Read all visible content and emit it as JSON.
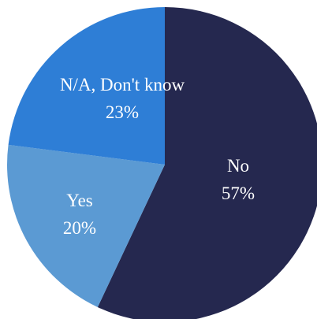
{
  "chart_data": {
    "type": "pie",
    "title": "",
    "start_angle_deg": 0,
    "direction": "clockwise",
    "slices": [
      {
        "label": "No",
        "value": 57,
        "value_label": "57%",
        "color": "#25284f"
      },
      {
        "label": "Yes",
        "value": 20,
        "value_label": "20%",
        "color": "#5b9ad3"
      },
      {
        "label": "N/A, Don't know",
        "value": 23,
        "value_label": "23%",
        "color": "#2e7ed6"
      }
    ],
    "legend": "none"
  }
}
